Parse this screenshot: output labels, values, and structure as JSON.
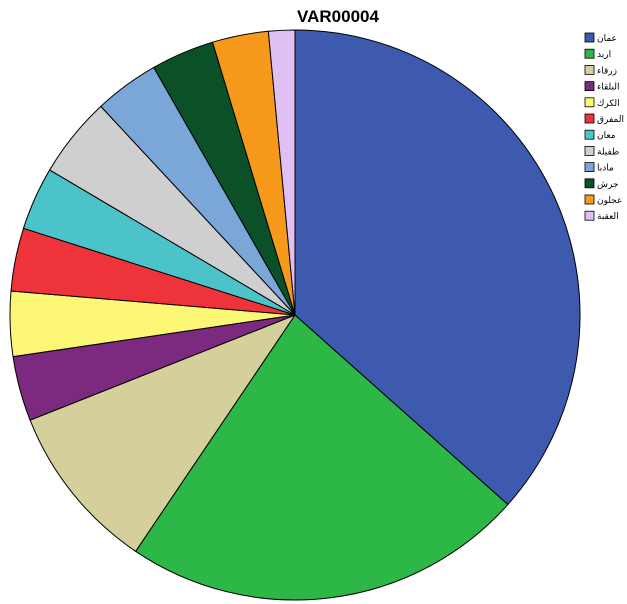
{
  "chart_data": {
    "type": "pie",
    "title": "VAR00004",
    "legend_position": "top-right",
    "categories": [
      "عمان",
      "اربد",
      "زرقاء",
      "البلقاء",
      "الكرك",
      "المفرق",
      "معان",
      "طفيلة",
      "مادبا",
      "جرش",
      "عجلون",
      "العقبة"
    ],
    "values": [
      36.8,
      23.0,
      9.6,
      3.7,
      3.7,
      3.6,
      3.6,
      4.6,
      3.7,
      3.6,
      3.2,
      1.5
    ],
    "colors": [
      "#3d5aae",
      "#2db747",
      "#d5cf9c",
      "#7b2a80",
      "#fdf776",
      "#ef333b",
      "#4cc3c8",
      "#cfcfcf",
      "#7aa7d8",
      "#0b5127",
      "#f79a1c",
      "#e0bff3"
    ],
    "start_angle_deg": 0,
    "direction": "clockwise"
  }
}
